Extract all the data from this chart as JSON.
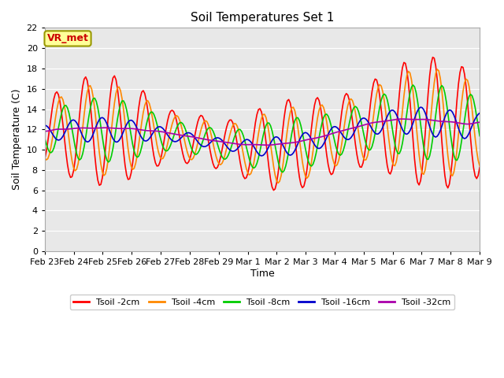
{
  "title": "Soil Temperatures Set 1",
  "xlabel": "Time",
  "ylabel": "Soil Temperature (C)",
  "ylim": [
    0,
    22
  ],
  "yticks": [
    0,
    2,
    4,
    6,
    8,
    10,
    12,
    14,
    16,
    18,
    20,
    22
  ],
  "bg_color": "#e8e8e8",
  "plot_bg_color": "#e8e8e8",
  "line_colors": {
    "Tsoil -2cm": "#ff0000",
    "Tsoil -4cm": "#ff8800",
    "Tsoil -8cm": "#00cc00",
    "Tsoil -16cm": "#0000cc",
    "Tsoil -32cm": "#aa00aa"
  },
  "annotation_text": "VR_met",
  "annotation_color": "#cc0000",
  "annotation_bg": "#ffff99",
  "annotation_border": "#999900",
  "x_tick_labels": [
    "Feb 23",
    "Feb 24",
    "Feb 25",
    "Feb 26",
    "Feb 27",
    "Feb 28",
    "Feb 29",
    "Mar 1",
    "Mar 2",
    "Mar 3",
    "Mar 4",
    "Mar 5",
    "Mar 6",
    "Mar 7",
    "Mar 8",
    "Mar 9"
  ],
  "n_points": 288
}
